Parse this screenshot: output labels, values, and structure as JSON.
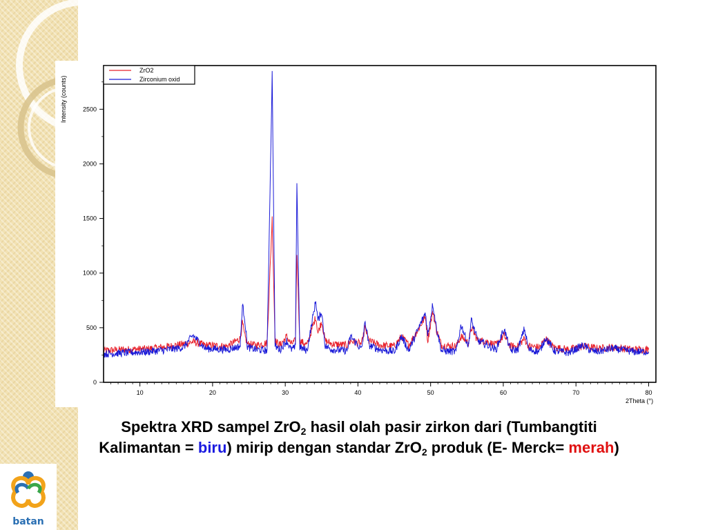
{
  "caption": {
    "line1_a": "Spektra XRD sampel ZrO",
    "line1_sub": "2",
    "line1_b": " hasil olah pasir zirkon dari (Tumbangtiti",
    "line2_a": "Kalimantan = ",
    "line2_blue": "biru",
    "line2_b": ") mirip dengan standar ZrO",
    "line2_sub": "2",
    "line2_c": " produk (E- Merck= ",
    "line2_red": "merah",
    "line2_d": ")"
  },
  "logo": {
    "text": "batan"
  },
  "chart_data": {
    "type": "line",
    "xlabel": "2Theta (°)",
    "ylabel": "Intensity (counts)",
    "xlim": [
      5,
      81
    ],
    "ylim": [
      0,
      2900
    ],
    "x_ticks": [
      10,
      20,
      30,
      40,
      50,
      60,
      70,
      80
    ],
    "y_ticks": [
      0,
      500,
      1000,
      1500,
      2000,
      2500
    ],
    "legend_position": "top-left",
    "series": [
      {
        "name": "ZrO2",
        "color": "#e8202a",
        "x": [
          5,
          8,
          11,
          14,
          16,
          17.3,
          19,
          22,
          23.8,
          24.1,
          24.4,
          24.8,
          26,
          27.5,
          28.2,
          28.6,
          29.3,
          30.2,
          30.8,
          31.4,
          31.6,
          32,
          33,
          34.2,
          34.5,
          35,
          35.5,
          36.5,
          38.5,
          39,
          40.5,
          41,
          41.5,
          43,
          45,
          46,
          47,
          49.3,
          49.6,
          50.3,
          50.8,
          51.5,
          53.5,
          54.2,
          55.2,
          55.6,
          56.5,
          57.5,
          59,
          60.1,
          61,
          62,
          62.9,
          63.5,
          65,
          65.8,
          67,
          69,
          71,
          72,
          73,
          75,
          78,
          80
        ],
        "values": [
          290,
          300,
          305,
          330,
          350,
          370,
          340,
          330,
          400,
          550,
          430,
          350,
          340,
          360,
          1500,
          380,
          340,
          420,
          350,
          380,
          1180,
          380,
          340,
          600,
          450,
          560,
          380,
          350,
          340,
          380,
          350,
          500,
          380,
          340,
          330,
          420,
          340,
          600,
          380,
          650,
          480,
          340,
          330,
          420,
          360,
          500,
          380,
          380,
          340,
          430,
          330,
          330,
          400,
          330,
          320,
          400,
          320,
          300,
          330,
          320,
          310,
          320,
          300,
          300
        ]
      },
      {
        "name": "Zirconium oxid",
        "color": "#1a1ad8",
        "x": [
          5,
          8,
          11,
          14,
          16,
          17.3,
          19,
          22,
          23.8,
          24.1,
          24.4,
          24.8,
          26,
          27.5,
          28.2,
          28.6,
          29.3,
          30.2,
          30.8,
          31.4,
          31.6,
          32,
          33,
          34.2,
          34.5,
          35,
          35.5,
          36.5,
          38.5,
          39,
          40.5,
          41,
          41.5,
          43,
          45,
          46,
          47,
          49.3,
          49.6,
          50.3,
          50.8,
          51.5,
          53.5,
          54.2,
          55.2,
          55.6,
          56.5,
          57.5,
          59,
          60.1,
          61,
          62,
          62.9,
          63.5,
          65,
          65.8,
          67,
          69,
          71,
          72,
          73,
          75,
          78,
          80
        ],
        "values": [
          260,
          270,
          280,
          300,
          320,
          430,
          310,
          300,
          330,
          710,
          600,
          320,
          300,
          290,
          2830,
          330,
          300,
          380,
          300,
          320,
          1840,
          320,
          290,
          750,
          560,
          650,
          330,
          300,
          290,
          420,
          300,
          560,
          340,
          300,
          280,
          420,
          290,
          640,
          430,
          720,
          500,
          290,
          280,
          530,
          330,
          570,
          380,
          350,
          300,
          490,
          290,
          300,
          490,
          300,
          280,
          410,
          290,
          270,
          340,
          290,
          280,
          310,
          280,
          280
        ]
      }
    ]
  }
}
